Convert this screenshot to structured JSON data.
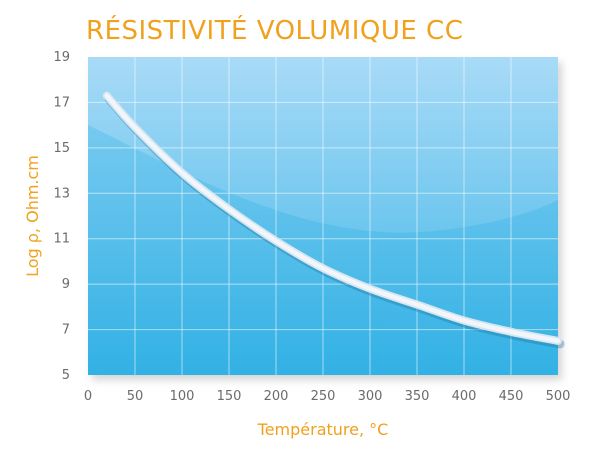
{
  "chart_data": {
    "type": "line",
    "title": "RÉSISTIVITÉ VOLUMIQUE CC",
    "xlabel": "Température, °C",
    "ylabel": "Log ρ, Ohm.cm",
    "xlim": [
      0,
      500
    ],
    "ylim": [
      5,
      19
    ],
    "x_ticks": [
      "0",
      "50",
      "100",
      "150",
      "200",
      "250",
      "300",
      "350",
      "400",
      "450",
      "500"
    ],
    "y_ticks": [
      "19",
      "17",
      "15",
      "13",
      "11",
      "9",
      "7",
      "5"
    ],
    "grid": true,
    "series": [
      {
        "x": [
          20,
          50,
          100,
          150,
          200,
          250,
          300,
          350,
          400,
          450,
          500
        ],
        "y": [
          17.3,
          15.9,
          13.9,
          12.3,
          10.9,
          9.7,
          8.8,
          8.1,
          7.4,
          6.9,
          6.5
        ]
      }
    ],
    "colors": {
      "title": "#f0a11d",
      "axis_label": "#f0a11d",
      "tick": "#6b6b6b",
      "plot_top": "#a9dbf7",
      "plot_bottom": "#3bb4e6",
      "curve": "#f2f6fa"
    }
  }
}
